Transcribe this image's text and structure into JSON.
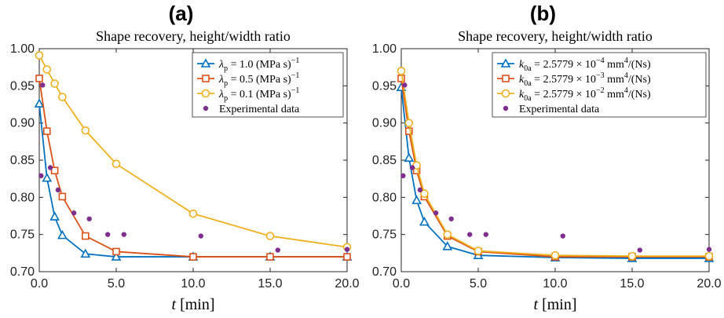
{
  "colors": {
    "blue": "#0072BD",
    "orange": "#D95319",
    "yellow": "#EDB120",
    "purple": "#7E2F8E",
    "axis": "#262626"
  },
  "chart_data": [
    {
      "type": "line",
      "panel_label": "(a)",
      "title": "Shape recovery, height/width ratio",
      "xlabel": "t [min]",
      "ylabel": "",
      "xlim": [
        0,
        20
      ],
      "ylim": [
        0.7,
        1.0
      ],
      "x_ticks": [
        "0.0",
        "5.0",
        "10.0",
        "15.0",
        "20.0"
      ],
      "y_ticks": [
        "0.70",
        "0.75",
        "0.80",
        "0.85",
        "0.90",
        "0.95",
        "1.00"
      ],
      "legend_position": "top-right",
      "series": [
        {
          "name": "λp = 1.0 (MPa s)−1",
          "legend": {
            "sym": "λ",
            "sub": "p",
            "rhs": " = 1.0 (MPa s)",
            "sup": "−1"
          },
          "color": "#0072BD",
          "marker": "triangle",
          "x": [
            0,
            0.5,
            1.0,
            1.5,
            3.0,
            5.0,
            10.0,
            15.0,
            20.0
          ],
          "y": [
            0.926,
            0.826,
            0.774,
            0.749,
            0.724,
            0.72,
            0.72,
            0.72,
            0.72
          ]
        },
        {
          "name": "λp = 0.5 (MPa s)−1",
          "legend": {
            "sym": "λ",
            "sub": "p",
            "rhs": " = 0.5 (MPa s)",
            "sup": "−1"
          },
          "color": "#D95319",
          "marker": "square",
          "x": [
            0,
            0.5,
            1.0,
            1.5,
            3.0,
            5.0,
            10.0,
            15.0,
            20.0
          ],
          "y": [
            0.96,
            0.889,
            0.836,
            0.801,
            0.748,
            0.727,
            0.72,
            0.72,
            0.72
          ]
        },
        {
          "name": "λp = 0.1 (MPa s)−1",
          "legend": {
            "sym": "λ",
            "sub": "p",
            "rhs": " = 0.1 (MPa s)",
            "sup": "−1"
          },
          "color": "#EDB120",
          "marker": "circle",
          "x": [
            0,
            0.5,
            1.0,
            1.5,
            3.0,
            5.0,
            10.0,
            15.0,
            20.0
          ],
          "y": [
            0.991,
            0.972,
            0.953,
            0.935,
            0.89,
            0.845,
            0.778,
            0.748,
            0.733
          ]
        },
        {
          "name": "Experimental data",
          "legend": {
            "sym": "",
            "sub": "",
            "rhs": "Experimental data",
            "sup": ""
          },
          "color": "#7E2F8E",
          "marker": "dot",
          "x": [
            0.12,
            0.22,
            0.72,
            1.22,
            2.25,
            3.25,
            4.45,
            5.5,
            10.5,
            15.5,
            20.0
          ],
          "y": [
            0.829,
            0.951,
            0.84,
            0.81,
            0.779,
            0.771,
            0.75,
            0.75,
            0.748,
            0.729,
            0.73
          ]
        }
      ]
    },
    {
      "type": "line",
      "panel_label": "(b)",
      "title": "Shape recovery, height/width ratio",
      "xlabel": "t [min]",
      "ylabel": "",
      "xlim": [
        0,
        20
      ],
      "ylim": [
        0.7,
        1.0
      ],
      "x_ticks": [
        "0.0",
        "5.0",
        "10.0",
        "15.0",
        "20.0"
      ],
      "y_ticks": [
        "0.70",
        "0.75",
        "0.80",
        "0.85",
        "0.90",
        "0.95",
        "1.00"
      ],
      "legend_position": "top-right",
      "series": [
        {
          "name": "k0a = 2.5779 × 10−4 mm4/(Ns)",
          "legend": {
            "sym": "k",
            "sub": "0a",
            "rhs": " = 2.5779 × 10",
            "sup": "−4",
            "tail": "  mm",
            "tailsup": "4",
            "end": "/(Ns)"
          },
          "color": "#0072BD",
          "marker": "triangle",
          "x": [
            0,
            0.5,
            1.0,
            1.5,
            3.0,
            5.0,
            10.0,
            15.0,
            20.0
          ],
          "y": [
            0.948,
            0.853,
            0.796,
            0.767,
            0.734,
            0.722,
            0.719,
            0.718,
            0.718
          ]
        },
        {
          "name": "k0a = 2.5779 × 10−3 mm4/(Ns)",
          "legend": {
            "sym": "k",
            "sub": "0a",
            "rhs": " = 2.5779 × 10",
            "sup": "−3",
            "tail": "  mm",
            "tailsup": "4",
            "end": "/(Ns)"
          },
          "color": "#D95319",
          "marker": "square",
          "x": [
            0,
            0.5,
            1.0,
            1.5,
            3.0,
            5.0,
            10.0,
            15.0,
            20.0
          ],
          "y": [
            0.96,
            0.889,
            0.836,
            0.801,
            0.748,
            0.727,
            0.72,
            0.72,
            0.72
          ]
        },
        {
          "name": "k0a = 2.5779 × 10−2 mm4/(Ns)",
          "legend": {
            "sym": "k",
            "sub": "0a",
            "rhs": " = 2.5779 × 10",
            "sup": "−2",
            "tail": "  mm",
            "tailsup": "4",
            "end": "/(Ns)"
          },
          "color": "#EDB120",
          "marker": "circle",
          "x": [
            0,
            0.5,
            1.0,
            1.5,
            3.0,
            5.0,
            10.0,
            15.0,
            20.0
          ],
          "y": [
            0.97,
            0.9,
            0.843,
            0.805,
            0.75,
            0.728,
            0.722,
            0.721,
            0.721
          ]
        },
        {
          "name": "Experimental data",
          "legend": {
            "sym": "",
            "sub": "",
            "rhs": "Experimental data",
            "sup": ""
          },
          "color": "#7E2F8E",
          "marker": "dot",
          "x": [
            0.12,
            0.22,
            0.72,
            1.22,
            2.25,
            3.25,
            4.45,
            5.5,
            10.5,
            15.5,
            20.0
          ],
          "y": [
            0.829,
            0.951,
            0.84,
            0.81,
            0.779,
            0.771,
            0.75,
            0.75,
            0.748,
            0.729,
            0.73
          ]
        }
      ]
    }
  ]
}
